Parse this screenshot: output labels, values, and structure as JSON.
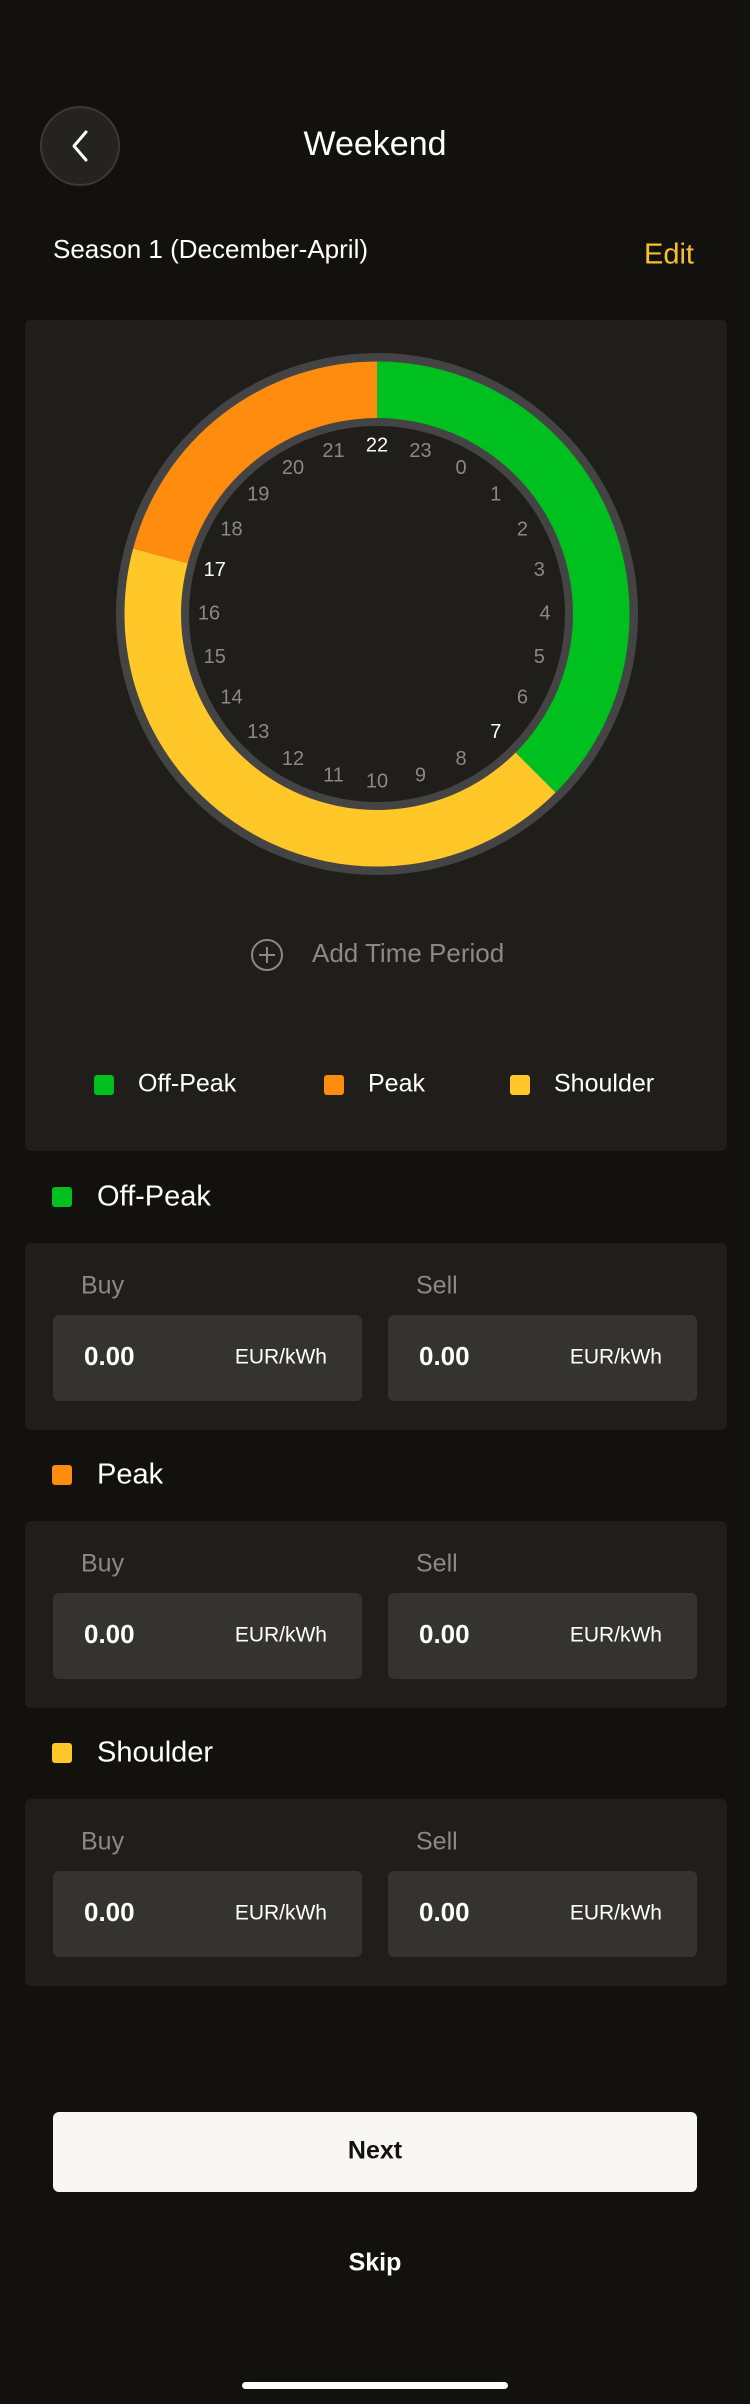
{
  "header": {
    "title": "Weekend"
  },
  "season": {
    "label": "Season 1 (December-April)",
    "action": "Edit"
  },
  "clock": {
    "hours": [
      22,
      23,
      0,
      1,
      2,
      3,
      4,
      5,
      6,
      7,
      8,
      9,
      10,
      11,
      12,
      13,
      14,
      15,
      16,
      17,
      18,
      19,
      20,
      21
    ],
    "periods": [
      {
        "name": "Off-Peak",
        "start": 22,
        "end": 7,
        "color": "#00c020"
      },
      {
        "name": "Peak",
        "start": 17,
        "end": 22,
        "color": "#ff8c0e"
      },
      {
        "name": "Shoulder",
        "start": 7,
        "end": 17,
        "color": "#ffc728"
      }
    ]
  },
  "add_period": "Add Time Period",
  "tariffs": [
    {
      "name": "Off-Peak",
      "buy_label": "Buy",
      "buy": "0.00",
      "buy_unit": "EUR/kWh",
      "sell_label": "Sell",
      "sell": "0.00",
      "sell_unit": "EUR/kWh"
    },
    {
      "name": "Peak",
      "buy_label": "Buy",
      "buy": "0.00",
      "buy_unit": "EUR/kWh",
      "sell_label": "Sell",
      "sell": "0.00",
      "sell_unit": "EUR/kWh"
    },
    {
      "name": "Shoulder",
      "buy_label": "Buy",
      "buy": "0.00",
      "buy_unit": "EUR/kWh",
      "sell_label": "Sell",
      "sell": "0.00",
      "sell_unit": "EUR/kWh"
    }
  ],
  "buttons": {
    "next": "Next",
    "skip": "Skip"
  }
}
